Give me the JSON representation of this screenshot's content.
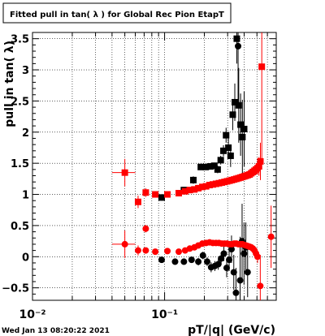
{
  "title": "Fitted pull in tan( λ ) for Global Rec Pion EtapT",
  "timestamp": "Wed Jan 13 08:20:22 2021",
  "chart_data": {
    "type": "scatter",
    "title": "Fitted pull in tan( λ ) for Global Rec Pion EtapT",
    "xlabel": "pT/|q| (GeV/c)",
    "ylabel": "pull in tan( λ)",
    "xscale": "log",
    "xlim": [
      0.01,
      0.7
    ],
    "ylim": [
      -0.7,
      3.6
    ],
    "x_tick_labels": [
      "10⁻²",
      "10⁻¹"
    ],
    "y_ticks": [
      -0.5,
      0,
      0.5,
      1,
      1.5,
      2,
      2.5,
      3,
      3.5
    ],
    "y_tick_labels": [
      "−0.5",
      "0",
      "0.5",
      "1",
      "1.5",
      "2",
      "2.5",
      "3",
      "3.5"
    ],
    "grid": true,
    "series": [
      {
        "color": "#000000",
        "marker": "square",
        "points": [
          {
            "x": 0.095,
            "y": 0.95,
            "ey": 0.05
          },
          {
            "x": 0.14,
            "y": 1.07,
            "ey": 0.05
          },
          {
            "x": 0.165,
            "y": 1.23,
            "ey": 0.06
          },
          {
            "x": 0.188,
            "y": 1.44,
            "ey": 0.05
          },
          {
            "x": 0.205,
            "y": 1.44,
            "ey": 0.04
          },
          {
            "x": 0.222,
            "y": 1.45,
            "ey": 0.05
          },
          {
            "x": 0.238,
            "y": 1.46,
            "ey": 0.05
          },
          {
            "x": 0.252,
            "y": 1.4,
            "ey": 0.06
          },
          {
            "x": 0.266,
            "y": 1.55,
            "ey": 0.07
          },
          {
            "x": 0.279,
            "y": 1.7,
            "ey": 0.09
          },
          {
            "x": 0.292,
            "y": 1.95,
            "ey": 0.12
          },
          {
            "x": 0.304,
            "y": 1.75,
            "ey": 0.15
          },
          {
            "x": 0.316,
            "y": 1.62,
            "ey": 0.18
          },
          {
            "x": 0.328,
            "y": 2.28,
            "ey": 0.25
          },
          {
            "x": 0.34,
            "y": 2.48,
            "ey": 0.3
          },
          {
            "x": 0.352,
            "y": 3.5,
            "ey": 0.4
          },
          {
            "x": 0.364,
            "y": 2.43,
            "ey": 0.6
          },
          {
            "x": 0.376,
            "y": 2.12,
            "ey": 0.5
          },
          {
            "x": 0.388,
            "y": 1.92,
            "ey": 0.6
          },
          {
            "x": 0.4,
            "y": 2.05,
            "ey": 0.6
          }
        ]
      },
      {
        "color": "#000000",
        "marker": "circle",
        "points": [
          {
            "x": 0.095,
            "y": -0.05,
            "ey": 0.05
          },
          {
            "x": 0.12,
            "y": -0.08,
            "ey": 0.05
          },
          {
            "x": 0.14,
            "y": -0.08,
            "ey": 0.05
          },
          {
            "x": 0.16,
            "y": -0.05,
            "ey": 0.05
          },
          {
            "x": 0.18,
            "y": -0.08,
            "ey": 0.06
          },
          {
            "x": 0.195,
            "y": 0.02,
            "ey": 0.06
          },
          {
            "x": 0.21,
            "y": -0.08,
            "ey": 0.07
          },
          {
            "x": 0.225,
            "y": -0.17,
            "ey": 0.08
          },
          {
            "x": 0.24,
            "y": -0.15,
            "ey": 0.08
          },
          {
            "x": 0.255,
            "y": -0.12,
            "ey": 0.09
          },
          {
            "x": 0.268,
            "y": -0.03,
            "ey": 0.1
          },
          {
            "x": 0.281,
            "y": 0.05,
            "ey": 0.12
          },
          {
            "x": 0.295,
            "y": -0.18,
            "ey": 0.15
          },
          {
            "x": 0.308,
            "y": -0.05,
            "ey": 0.18
          },
          {
            "x": 0.321,
            "y": 0.12,
            "ey": 0.22
          },
          {
            "x": 0.334,
            "y": -0.25,
            "ey": 0.28
          },
          {
            "x": 0.347,
            "y": -0.58,
            "ey": 0.4
          },
          {
            "x": 0.36,
            "y": 3.38,
            "ey": 0.9
          },
          {
            "x": 0.373,
            "y": -0.38,
            "ey": 0.7
          },
          {
            "x": 0.386,
            "y": 0.25,
            "ey": 0.6
          },
          {
            "x": 0.399,
            "y": 0.05,
            "ey": 0.5
          },
          {
            "x": 0.412,
            "y": 0.15,
            "ey": 0.4
          },
          {
            "x": 0.425,
            "y": -0.25,
            "ey": 0.4
          }
        ]
      },
      {
        "color": "#ff0000",
        "marker": "square",
        "points": [
          {
            "x": 0.05,
            "y": 1.35,
            "ey": 0.22,
            "ex": 0.01
          },
          {
            "x": 0.063,
            "y": 0.88,
            "ey": 0.1
          },
          {
            "x": 0.072,
            "y": 1.03,
            "ey": 0.07
          },
          {
            "x": 0.085,
            "y": 1.0,
            "ey": 0.05
          },
          {
            "x": 0.105,
            "y": 1.0,
            "ey": 0.04
          },
          {
            "x": 0.128,
            "y": 1.02,
            "ey": 0.04
          },
          {
            "x": 0.143,
            "y": 1.05,
            "ey": 0.03
          },
          {
            "x": 0.155,
            "y": 1.07,
            "ey": 0.03
          },
          {
            "x": 0.168,
            "y": 1.08,
            "ey": 0.03
          },
          {
            "x": 0.18,
            "y": 1.1,
            "ey": 0.03
          },
          {
            "x": 0.193,
            "y": 1.12,
            "ey": 0.03
          },
          {
            "x": 0.206,
            "y": 1.13,
            "ey": 0.03
          },
          {
            "x": 0.219,
            "y": 1.15,
            "ey": 0.03
          },
          {
            "x": 0.232,
            "y": 1.16,
            "ey": 0.03
          },
          {
            "x": 0.245,
            "y": 1.17,
            "ey": 0.03
          },
          {
            "x": 0.258,
            "y": 1.18,
            "ey": 0.03
          },
          {
            "x": 0.271,
            "y": 1.19,
            "ey": 0.03
          },
          {
            "x": 0.284,
            "y": 1.2,
            "ey": 0.03
          },
          {
            "x": 0.297,
            "y": 1.21,
            "ey": 0.03
          },
          {
            "x": 0.31,
            "y": 1.22,
            "ey": 0.03
          },
          {
            "x": 0.323,
            "y": 1.23,
            "ey": 0.03
          },
          {
            "x": 0.336,
            "y": 1.24,
            "ey": 0.04
          },
          {
            "x": 0.349,
            "y": 1.25,
            "ey": 0.04
          },
          {
            "x": 0.362,
            "y": 1.26,
            "ey": 0.04
          },
          {
            "x": 0.375,
            "y": 1.27,
            "ey": 0.04
          },
          {
            "x": 0.388,
            "y": 1.28,
            "ey": 0.04
          },
          {
            "x": 0.401,
            "y": 1.29,
            "ey": 0.04
          },
          {
            "x": 0.414,
            "y": 1.3,
            "ey": 0.04
          },
          {
            "x": 0.427,
            "y": 1.31,
            "ey": 0.04
          },
          {
            "x": 0.44,
            "y": 1.32,
            "ey": 0.05
          },
          {
            "x": 0.453,
            "y": 1.34,
            "ey": 0.05
          },
          {
            "x": 0.466,
            "y": 1.36,
            "ey": 0.06
          },
          {
            "x": 0.479,
            "y": 1.38,
            "ey": 0.07
          },
          {
            "x": 0.492,
            "y": 1.4,
            "ey": 0.08
          },
          {
            "x": 0.505,
            "y": 1.42,
            "ey": 0.1
          },
          {
            "x": 0.518,
            "y": 1.45,
            "ey": 0.15
          },
          {
            "x": 0.531,
            "y": 1.53,
            "ey": 0.3
          },
          {
            "x": 0.544,
            "y": 3.05,
            "ey": 1.5
          }
        ]
      },
      {
        "color": "#ff0000",
        "marker": "circle",
        "points": [
          {
            "x": 0.05,
            "y": 0.2,
            "ey": 0.22,
            "ex": 0.01
          },
          {
            "x": 0.063,
            "y": 0.1,
            "ey": 0.08
          },
          {
            "x": 0.072,
            "y": 0.45,
            "ey": 0.06
          },
          {
            "x": 0.072,
            "y": 0.1,
            "ey": 0.05
          },
          {
            "x": 0.085,
            "y": 0.08,
            "ey": 0.04
          },
          {
            "x": 0.105,
            "y": 0.09,
            "ey": 0.03
          },
          {
            "x": 0.128,
            "y": 0.08,
            "ey": 0.03
          },
          {
            "x": 0.143,
            "y": 0.1,
            "ey": 0.03
          },
          {
            "x": 0.155,
            "y": 0.13,
            "ey": 0.03
          },
          {
            "x": 0.168,
            "y": 0.15,
            "ey": 0.03
          },
          {
            "x": 0.18,
            "y": 0.18,
            "ey": 0.03
          },
          {
            "x": 0.193,
            "y": 0.21,
            "ey": 0.03
          },
          {
            "x": 0.206,
            "y": 0.22,
            "ey": 0.03
          },
          {
            "x": 0.219,
            "y": 0.23,
            "ey": 0.03
          },
          {
            "x": 0.232,
            "y": 0.22,
            "ey": 0.03
          },
          {
            "x": 0.245,
            "y": 0.22,
            "ey": 0.03
          },
          {
            "x": 0.258,
            "y": 0.22,
            "ey": 0.03
          },
          {
            "x": 0.271,
            "y": 0.21,
            "ey": 0.03
          },
          {
            "x": 0.284,
            "y": 0.21,
            "ey": 0.03
          },
          {
            "x": 0.297,
            "y": 0.21,
            "ey": 0.03
          },
          {
            "x": 0.31,
            "y": 0.2,
            "ey": 0.03
          },
          {
            "x": 0.323,
            "y": 0.2,
            "ey": 0.03
          },
          {
            "x": 0.336,
            "y": 0.21,
            "ey": 0.03
          },
          {
            "x": 0.349,
            "y": 0.21,
            "ey": 0.03
          },
          {
            "x": 0.362,
            "y": 0.2,
            "ey": 0.03
          },
          {
            "x": 0.375,
            "y": 0.2,
            "ey": 0.03
          },
          {
            "x": 0.388,
            "y": 0.2,
            "ey": 0.03
          },
          {
            "x": 0.401,
            "y": 0.19,
            "ey": 0.04
          },
          {
            "x": 0.414,
            "y": 0.18,
            "ey": 0.04
          },
          {
            "x": 0.427,
            "y": 0.17,
            "ey": 0.04
          },
          {
            "x": 0.44,
            "y": 0.16,
            "ey": 0.04
          },
          {
            "x": 0.453,
            "y": 0.15,
            "ey": 0.05
          },
          {
            "x": 0.466,
            "y": 0.13,
            "ey": 0.05
          },
          {
            "x": 0.479,
            "y": 0.1,
            "ey": 0.06
          },
          {
            "x": 0.492,
            "y": 0.05,
            "ey": 0.08
          },
          {
            "x": 0.505,
            "y": 0.0,
            "ey": 0.1
          },
          {
            "x": 0.53,
            "y": -0.47,
            "ey": 0.5
          },
          {
            "x": 0.64,
            "y": 0.32,
            "ey": 0.5
          }
        ]
      }
    ]
  }
}
